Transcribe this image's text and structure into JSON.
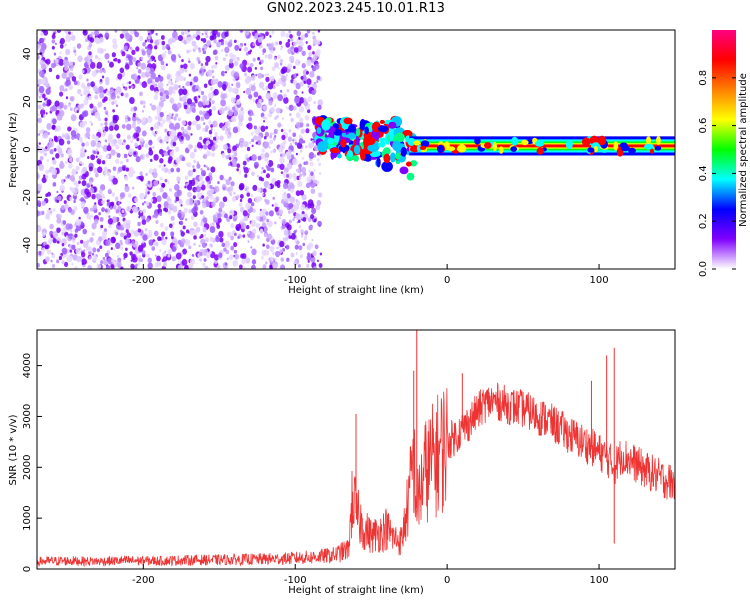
{
  "figure_title": "GN02.2023.245.10.01.R13",
  "chart_data": [
    {
      "type": "heatmap",
      "title": "",
      "xlabel": "Height of straight line (km)",
      "ylabel": "Frequency (Hz)",
      "xlim": [
        -270,
        150
      ],
      "ylim": [
        -50,
        50
      ],
      "xticks": [
        -200,
        -100,
        0,
        100
      ],
      "yticks": [
        -40,
        -20,
        0,
        20,
        40
      ],
      "grid": false,
      "noise_region_x": [
        -270,
        -83
      ],
      "signal_segments": [
        {
          "x0": -85,
          "x1": -22,
          "f_center": 5,
          "f_halfwidth": 7
        },
        {
          "x0": -25,
          "x1": 150,
          "f_center": 1.5,
          "f_halfwidth": 2.5
        }
      ],
      "colorbar": {
        "label": "Normalized spectral amplitude",
        "range": [
          0,
          1
        ],
        "ticks": [
          0.0,
          0.2,
          0.4,
          0.6,
          0.8
        ],
        "colormap": [
          "#ffffff",
          "#8000ff",
          "#0000ff",
          "#00ffff",
          "#00ff00",
          "#ffff00",
          "#ff8000",
          "#ff0000",
          "#ff0080"
        ]
      }
    },
    {
      "type": "line",
      "title": "",
      "xlabel": "Height of straight line (km)",
      "ylabel": "SNR (10 * v/v)",
      "xlim": [
        -270,
        150
      ],
      "ylim": [
        0,
        4700
      ],
      "xticks": [
        -200,
        -100,
        0,
        100
      ],
      "yticks": [
        0,
        1000,
        2000,
        3000,
        4000
      ],
      "grid": false,
      "color": "#ee3333",
      "series": [
        {
          "x": [
            -270,
            -250,
            -230,
            -210,
            -190,
            -170,
            -150,
            -130,
            -110,
            -90,
            -75,
            -65,
            -62,
            -60,
            -55,
            -50,
            -45,
            -40,
            -35,
            -30,
            -25,
            -22,
            -20,
            -18,
            -15,
            -10,
            -5,
            0,
            5,
            10,
            15,
            20,
            25,
            30,
            35,
            40,
            45,
            50,
            55,
            60,
            65,
            70,
            75,
            80,
            85,
            90,
            95,
            100,
            105,
            110,
            115,
            120,
            125,
            130,
            135,
            140,
            145,
            150
          ],
          "y": [
            150,
            160,
            150,
            165,
            160,
            175,
            180,
            190,
            200,
            230,
            270,
            380,
            1500,
            1100,
            800,
            650,
            700,
            800,
            600,
            550,
            1400,
            2200,
            1200,
            1500,
            1900,
            2100,
            2300,
            2500,
            2600,
            2750,
            2900,
            3100,
            3250,
            3300,
            3280,
            3220,
            3180,
            3150,
            3080,
            3000,
            2950,
            2850,
            2750,
            2650,
            2560,
            2480,
            2400,
            2300,
            2200,
            2000,
            2250,
            2150,
            2050,
            1950,
            1880,
            1800,
            1730,
            1680
          ]
        }
      ],
      "spikes": [
        {
          "x": -60,
          "y": 3050
        },
        {
          "x": -20,
          "y": 4700
        },
        {
          "x": -22,
          "y": 3900
        },
        {
          "x": 10,
          "y": 3850
        },
        {
          "x": 95,
          "y": 3700
        },
        {
          "x": 105,
          "y": 4200
        },
        {
          "x": 110,
          "y": 4350
        },
        {
          "x": 110,
          "y": 500
        }
      ]
    }
  ]
}
